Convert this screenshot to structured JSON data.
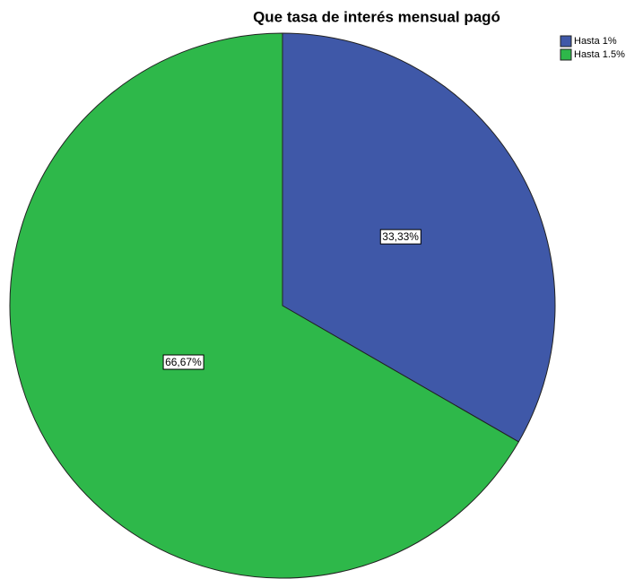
{
  "chart_data": {
    "type": "pie",
    "title": "Que tasa de interés mensual pagó",
    "categories": [
      "Hasta 1%",
      "Hasta 1.5%"
    ],
    "values": [
      33.33,
      66.67
    ],
    "value_labels": [
      "33,33%",
      "66,67%"
    ],
    "colors": [
      "#3f58a8",
      "#2eb84a"
    ],
    "legend": "top-right"
  }
}
